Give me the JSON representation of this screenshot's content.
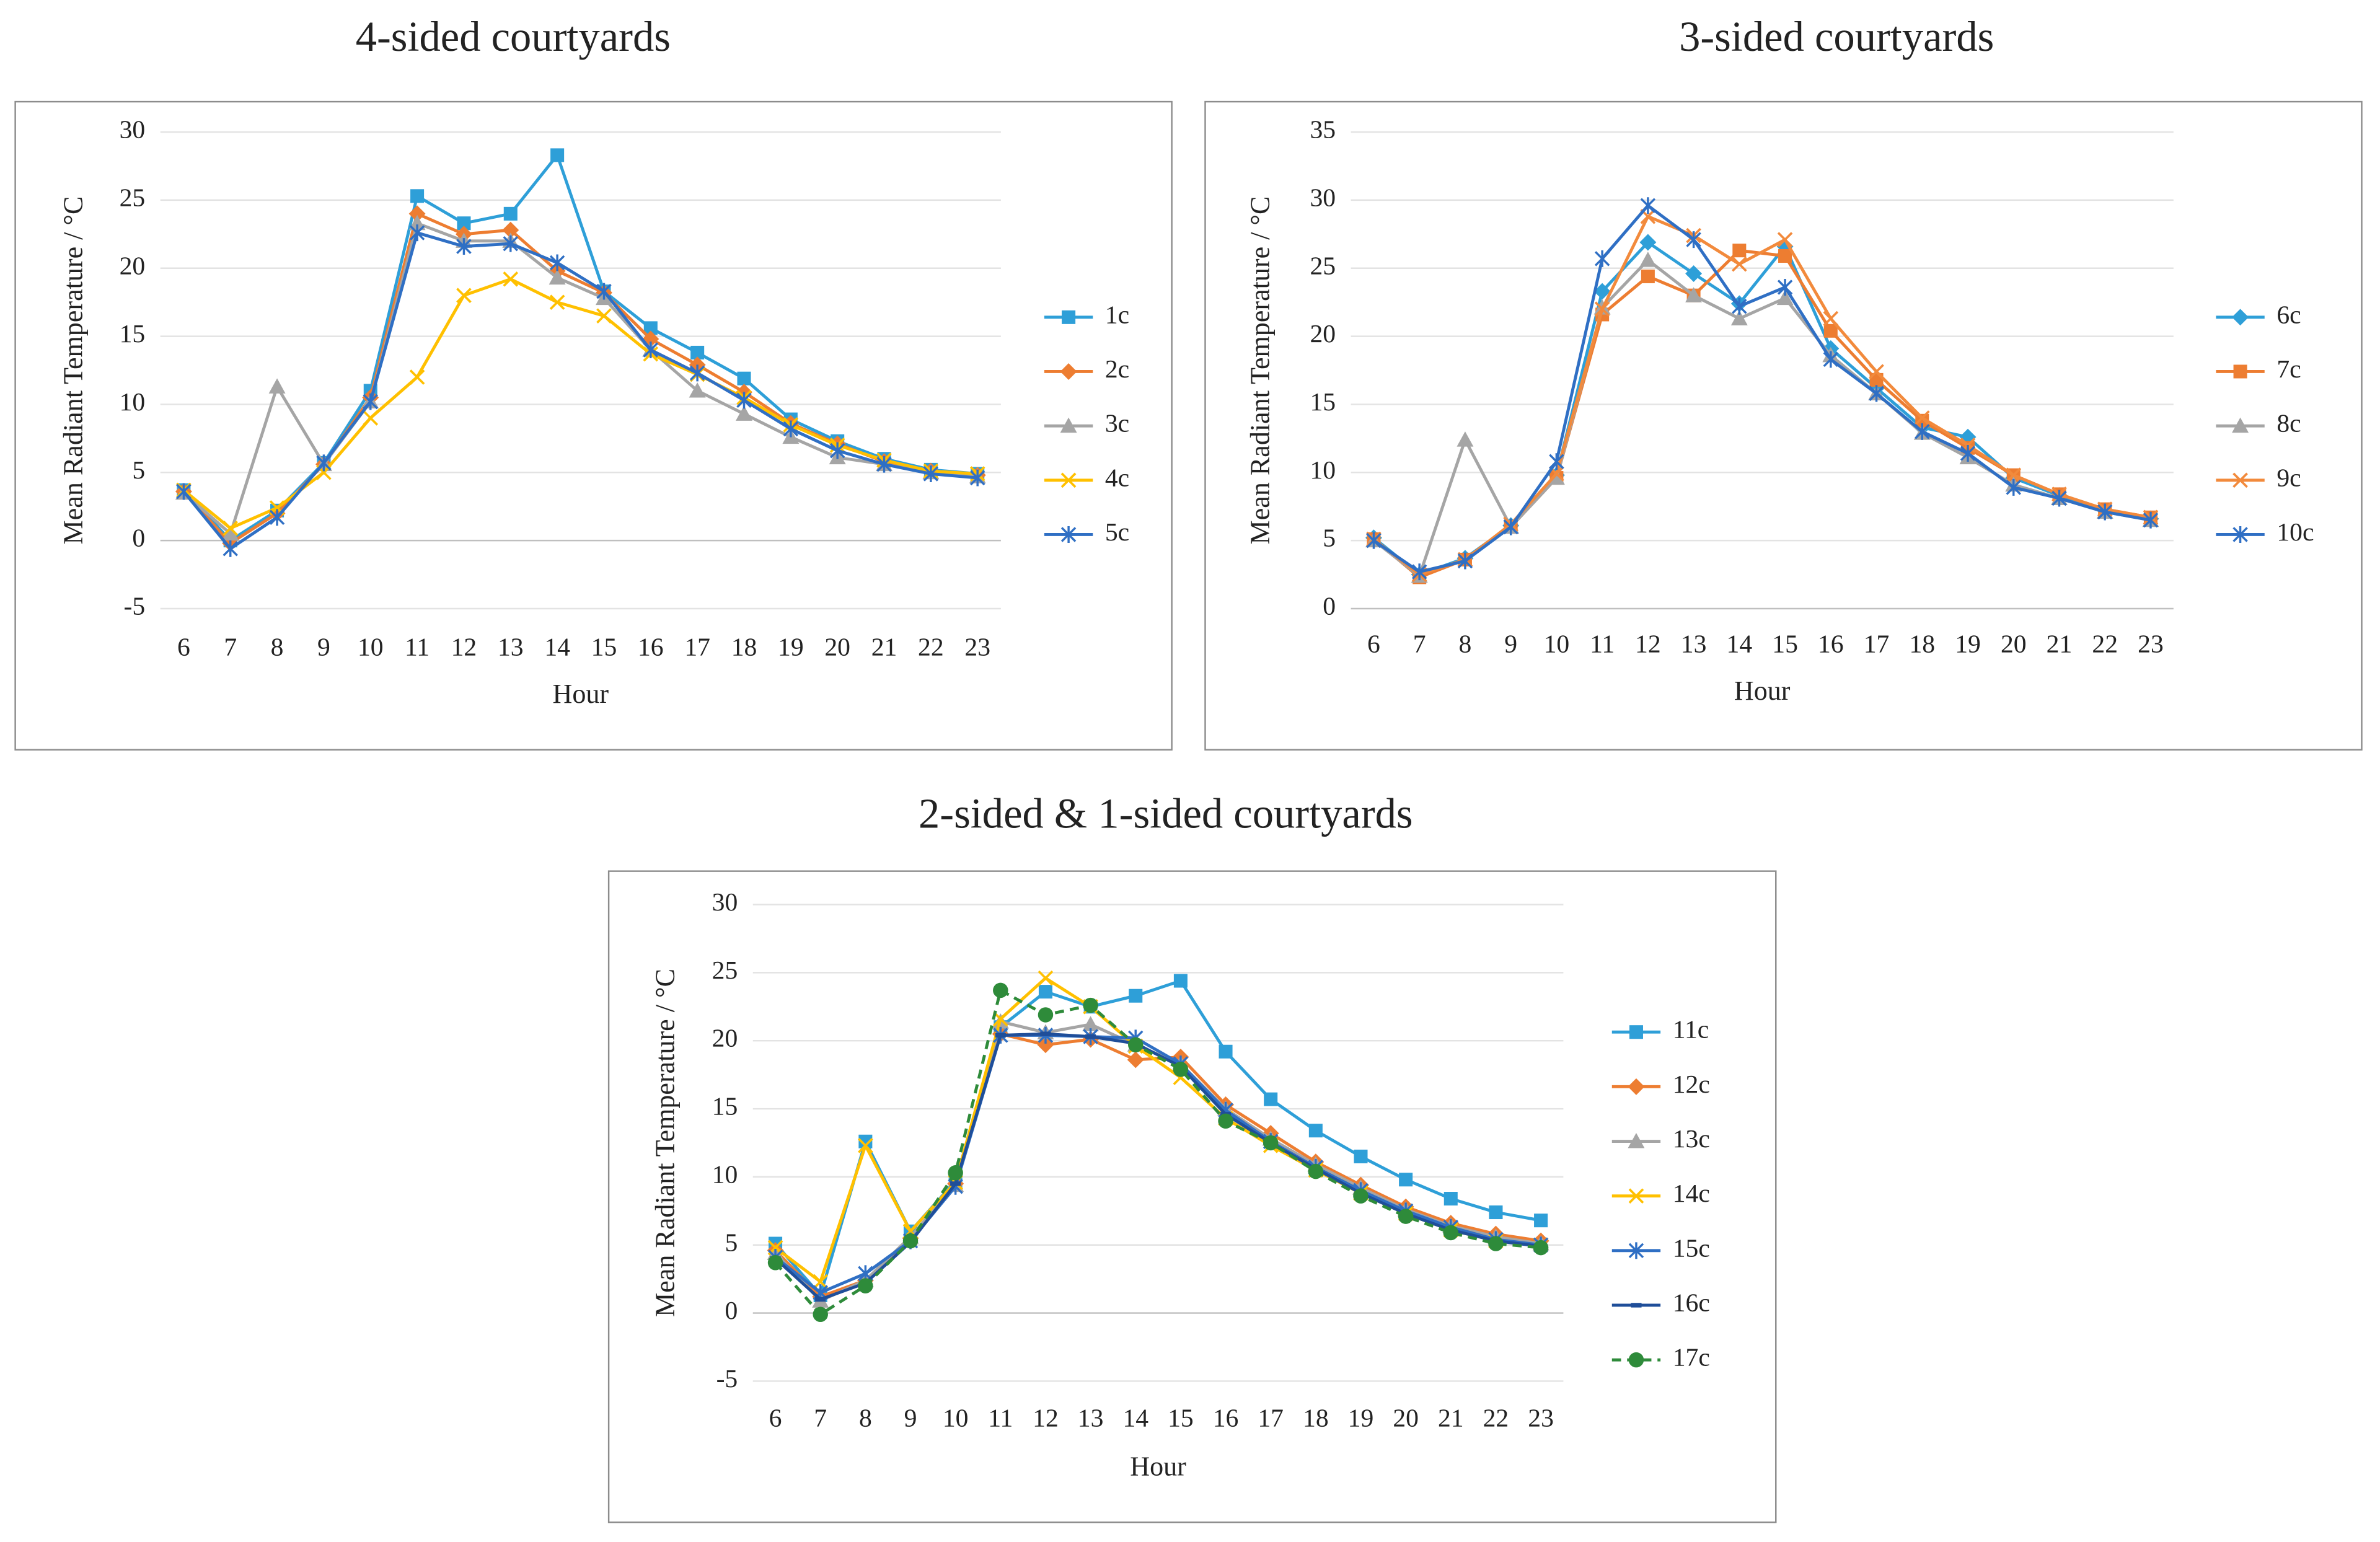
{
  "chart_data": [
    {
      "type": "line",
      "title": "4-sided courtyards",
      "xlabel": "Hour",
      "ylabel": "Mean Radiant Temperature / °C",
      "categories": [
        6,
        7,
        8,
        9,
        10,
        11,
        12,
        13,
        14,
        15,
        16,
        17,
        18,
        19,
        20,
        21,
        22,
        23
      ],
      "ylim": [
        -5,
        30
      ],
      "yticks": [
        -5,
        0,
        5,
        10,
        15,
        20,
        25,
        30
      ],
      "grid": true,
      "legend": "right",
      "series": [
        {
          "name": "1c",
          "color": "#2e9fd8",
          "marker": "square",
          "dash": false,
          "values": [
            3.7,
            0.0,
            2.2,
            5.7,
            11.0,
            25.3,
            23.3,
            24.0,
            28.3,
            18.3,
            15.6,
            13.8,
            11.9,
            8.9,
            7.3,
            6.0,
            5.2,
            4.9
          ]
        },
        {
          "name": "2c",
          "color": "#ed7d31",
          "marker": "diamond",
          "dash": false,
          "values": [
            3.6,
            -0.2,
            2.0,
            5.6,
            10.5,
            24.0,
            22.5,
            22.8,
            19.8,
            18.2,
            14.8,
            12.9,
            10.9,
            8.6,
            7.1,
            5.8,
            5.1,
            4.8
          ]
        },
        {
          "name": "3c",
          "color": "#a5a5a5",
          "marker": "triangle",
          "dash": false,
          "values": [
            3.5,
            0.5,
            11.3,
            5.6,
            10.2,
            23.3,
            22.0,
            22.0,
            19.3,
            17.8,
            14.0,
            11.0,
            9.3,
            7.6,
            6.1,
            5.6,
            5.0,
            4.7
          ]
        },
        {
          "name": "4c",
          "color": "#ffc000",
          "marker": "x",
          "dash": false,
          "values": [
            3.7,
            0.9,
            2.4,
            5.0,
            9.0,
            12.0,
            18.0,
            19.2,
            17.5,
            16.5,
            13.7,
            12.2,
            10.5,
            8.5,
            7.0,
            5.9,
            5.1,
            4.9
          ]
        },
        {
          "name": "5c",
          "color": "#2f6fc4",
          "marker": "asterisk",
          "dash": false,
          "values": [
            3.6,
            -0.6,
            1.7,
            5.7,
            10.2,
            22.6,
            21.6,
            21.8,
            20.4,
            18.3,
            14.0,
            12.3,
            10.3,
            8.2,
            6.6,
            5.6,
            4.9,
            4.6
          ]
        }
      ]
    },
    {
      "type": "line",
      "title": "3-sided courtyards",
      "xlabel": "Hour",
      "ylabel": "Mean Radiant Temperature / °C",
      "categories": [
        6,
        7,
        8,
        9,
        10,
        11,
        12,
        13,
        14,
        15,
        16,
        17,
        18,
        19,
        20,
        21,
        22,
        23
      ],
      "ylim": [
        0,
        35
      ],
      "yticks": [
        0,
        5,
        10,
        15,
        20,
        25,
        30,
        35
      ],
      "grid": true,
      "legend": "right",
      "series": [
        {
          "name": "6c",
          "color": "#2e9fd8",
          "marker": "diamond",
          "dash": false,
          "values": [
            5.2,
            2.5,
            3.7,
            6.1,
            9.8,
            23.3,
            26.9,
            24.6,
            22.4,
            26.6,
            19.1,
            16.2,
            13.3,
            12.6,
            9.6,
            8.3,
            7.2,
            6.6
          ]
        },
        {
          "name": "7c",
          "color": "#ed7d31",
          "marker": "square",
          "dash": false,
          "values": [
            5.1,
            2.3,
            3.6,
            6.0,
            9.6,
            21.6,
            24.4,
            23.0,
            26.3,
            25.9,
            20.4,
            16.8,
            13.8,
            11.8,
            9.8,
            8.4,
            7.3,
            6.7
          ]
        },
        {
          "name": "8c",
          "color": "#a5a5a5",
          "marker": "triangle",
          "dash": false,
          "values": [
            5.0,
            2.4,
            12.4,
            6.0,
            9.6,
            22.1,
            25.6,
            23.0,
            21.3,
            22.8,
            18.6,
            15.8,
            12.9,
            11.1,
            9.1,
            8.1,
            7.1,
            6.5
          ]
        },
        {
          "name": "9c",
          "color": "#f28a3c",
          "marker": "x",
          "dash": false,
          "values": [
            5.1,
            2.5,
            3.6,
            6.2,
            9.9,
            22.0,
            28.8,
            27.4,
            25.3,
            27.1,
            21.3,
            17.4,
            14.0,
            12.0,
            9.8,
            8.4,
            7.3,
            6.7
          ]
        },
        {
          "name": "10c",
          "color": "#2f6fc4",
          "marker": "asterisk",
          "dash": false,
          "values": [
            5.0,
            2.7,
            3.5,
            6.0,
            10.8,
            25.7,
            29.6,
            27.1,
            22.2,
            23.6,
            18.3,
            15.8,
            13.0,
            11.4,
            8.9,
            8.1,
            7.1,
            6.5
          ]
        }
      ]
    },
    {
      "type": "line",
      "title": "2-sided & 1-sided courtyards",
      "xlabel": "Hour",
      "ylabel": "Mean Radiant Temperature / °C",
      "categories": [
        6,
        7,
        8,
        9,
        10,
        11,
        12,
        13,
        14,
        15,
        16,
        17,
        18,
        19,
        20,
        21,
        22,
        23
      ],
      "ylim": [
        -5,
        30
      ],
      "yticks": [
        -5,
        0,
        5,
        10,
        15,
        20,
        25,
        30
      ],
      "grid": true,
      "legend": "right",
      "series": [
        {
          "name": "11c",
          "color": "#2e9fd8",
          "marker": "square",
          "dash": false,
          "values": [
            5.1,
            1.3,
            12.6,
            6.0,
            9.7,
            21.0,
            23.6,
            22.5,
            23.3,
            24.4,
            19.2,
            15.7,
            13.4,
            11.5,
            9.8,
            8.4,
            7.4,
            6.8
          ]
        },
        {
          "name": "12c",
          "color": "#ed7d31",
          "marker": "diamond",
          "dash": false,
          "values": [
            4.6,
            1.2,
            2.4,
            5.5,
            9.5,
            20.5,
            19.7,
            20.1,
            18.6,
            18.8,
            15.3,
            13.2,
            11.1,
            9.4,
            7.8,
            6.6,
            5.8,
            5.3
          ]
        },
        {
          "name": "13c",
          "color": "#a5a5a5",
          "marker": "triangle",
          "dash": false,
          "values": [
            4.4,
            0.9,
            2.4,
            5.6,
            9.4,
            21.4,
            20.6,
            21.2,
            19.7,
            18.3,
            15.0,
            12.8,
            10.9,
            9.2,
            7.6,
            6.4,
            5.6,
            5.1
          ]
        },
        {
          "name": "14c",
          "color": "#ffc000",
          "marker": "x",
          "dash": false,
          "values": [
            4.8,
            2.3,
            12.3,
            6.0,
            9.6,
            21.6,
            24.6,
            22.5,
            19.6,
            17.3,
            14.3,
            12.3,
            10.5,
            8.8,
            7.3,
            6.1,
            5.3,
            5.0
          ]
        },
        {
          "name": "15c",
          "color": "#2f6fc4",
          "marker": "asterisk",
          "dash": false,
          "values": [
            4.1,
            1.5,
            2.9,
            5.3,
            9.3,
            20.4,
            20.4,
            20.3,
            20.2,
            18.3,
            14.9,
            12.6,
            10.7,
            9.0,
            7.5,
            6.3,
            5.4,
            5.0
          ]
        },
        {
          "name": "16c",
          "color": "#1f4e99",
          "marker": "dash",
          "dash": false,
          "values": [
            4.0,
            1.0,
            2.2,
            5.2,
            9.5,
            20.4,
            20.5,
            20.3,
            19.8,
            18.1,
            14.6,
            12.5,
            10.6,
            8.8,
            7.3,
            6.1,
            5.3,
            4.9
          ]
        },
        {
          "name": "17c",
          "color": "#2e8b3a",
          "marker": "circle",
          "dash": true,
          "values": [
            3.7,
            -0.1,
            2.0,
            5.3,
            10.3,
            23.7,
            21.9,
            22.6,
            19.7,
            17.9,
            14.1,
            12.5,
            10.4,
            8.6,
            7.1,
            5.9,
            5.1,
            4.8
          ]
        }
      ]
    }
  ]
}
